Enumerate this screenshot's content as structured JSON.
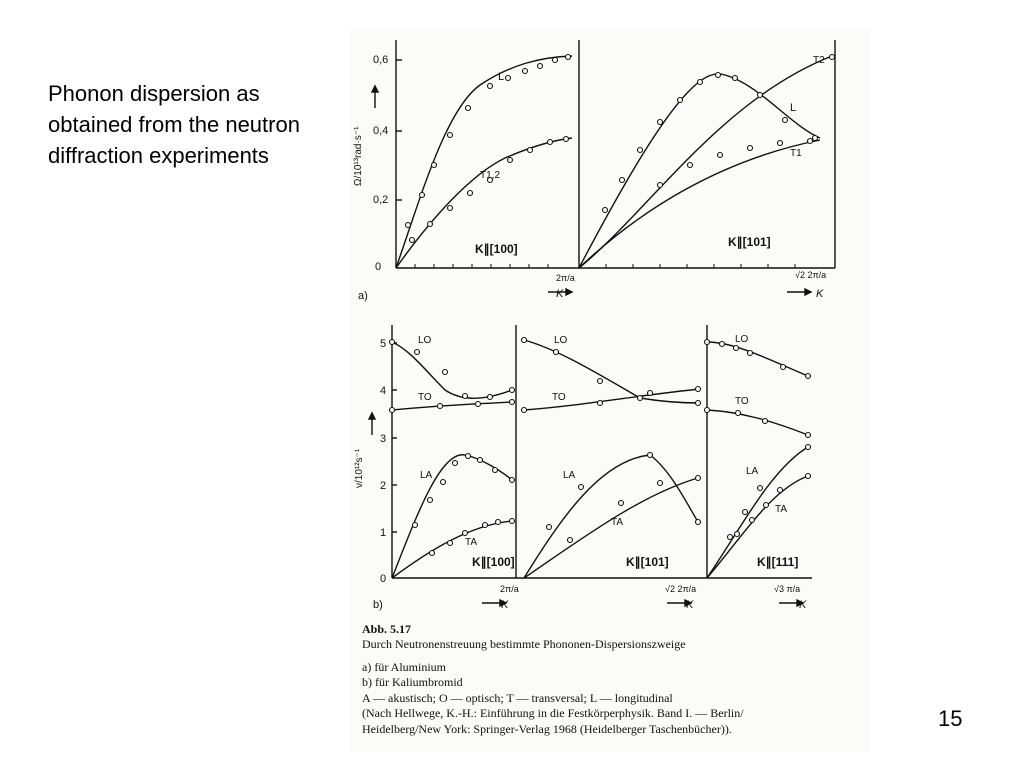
{
  "slide": {
    "title": "Phonon dispersion as obtained from the neutron diffraction experiments",
    "page_number": "15"
  },
  "figure_a": {
    "panel_label": "a)",
    "ylabel": "Ω/10¹³rad·s⁻¹",
    "yticks": [
      "0",
      "0,2",
      "0,4",
      "0,6"
    ],
    "panel1_label": "K∥[100]",
    "panel2_label": "K∥[101]",
    "panel1_xend": "2π/a",
    "panel2_xend": "√2 2π/a",
    "k_label": "K",
    "branch_L": "L",
    "branch_T12": "T1,2",
    "branch_T2": "T2",
    "branch_T1": "T1",
    "branch_L2": "L"
  },
  "figure_b": {
    "panel_label": "b)",
    "ylabel": "ν/10¹²s⁻¹",
    "yticks": [
      "0",
      "1",
      "2",
      "3",
      "4",
      "5"
    ],
    "panel1_label": "K∥[100]",
    "panel2_label": "K∥[101]",
    "panel3_label": "K∥[111]",
    "panel1_xend": "2π/a",
    "panel2_xend": "√2 2π/a",
    "panel3_xend": "√3 π/a",
    "k_label": "K",
    "lo": "LO",
    "to": "TO",
    "la": "LA",
    "ta": "TA"
  },
  "caption": {
    "heading": "Abb. 5.17",
    "line1": "Durch Neutronenstreuung bestimmte Phononen-Dispersionszweige",
    "line2": "a)  für Aluminium",
    "line3": "b)  für Kaliumbromid",
    "line4": "A — akustisch;  O — optisch;  T — transversal;  L — longitudinal",
    "line5": "(Nach Hellwege, K.-H.: Einführung in die Festkörperphysik. Band I. — Berlin/",
    "line6": "Heidelberg/New York: Springer-Verlag 1968 (Heidelberger Taschenbücher))."
  },
  "colors": {
    "ink": "#111111",
    "background": "#ffffff",
    "scan": "#fbfbfa"
  }
}
